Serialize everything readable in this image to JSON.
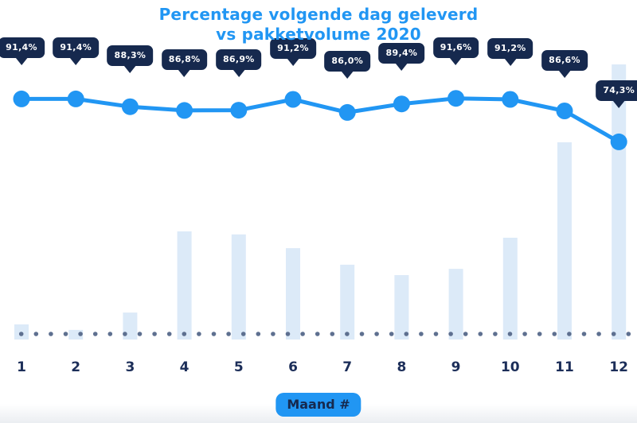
{
  "title": {
    "line1": "Percentage volgende dag geleverd",
    "line2": "vs pakketvolume 2020"
  },
  "chart_data": {
    "type": "line",
    "combo_types": [
      "line",
      "bar"
    ],
    "title": "Percentage volgende dag geleverd vs pakketvolume 2020",
    "xlabel": "Maand #",
    "categories": [
      "1",
      "2",
      "3",
      "4",
      "5",
      "6",
      "7",
      "8",
      "9",
      "10",
      "11",
      "12"
    ],
    "series": [
      {
        "name": "Percentage volgende dag geleverd",
        "type": "line",
        "unit": "%",
        "values": [
          91.4,
          91.4,
          88.3,
          86.8,
          86.9,
          91.2,
          86.0,
          89.4,
          91.6,
          91.2,
          86.6,
          74.3
        ],
        "labels": [
          "91,4%",
          "91,4%",
          "88,3%",
          "86,8%",
          "86,9%",
          "91,2%",
          "86,0%",
          "89,4%",
          "91,6%",
          "91,2%",
          "86,6%",
          "74,3%"
        ],
        "ylim": [
          70,
          95
        ]
      },
      {
        "name": "Pakketvolume 2020",
        "type": "bar",
        "unit": "relative index (no value axis shown)",
        "values": [
          5.5,
          3.5,
          9.8,
          39.3,
          38.2,
          33.2,
          27.2,
          23.4,
          25.7,
          37.0,
          71.7,
          100
        ]
      }
    ],
    "legend_position": "none",
    "grid": false,
    "baseline_style": "dotted"
  },
  "colors": {
    "accent_blue": "#2196F3",
    "tooltip_navy": "#16294E",
    "bar_light_blue": "#DCEAF8",
    "dot_gray_blue": "#5E7090",
    "axis_navy": "#1C2E59",
    "background": "#FFFFFF"
  }
}
